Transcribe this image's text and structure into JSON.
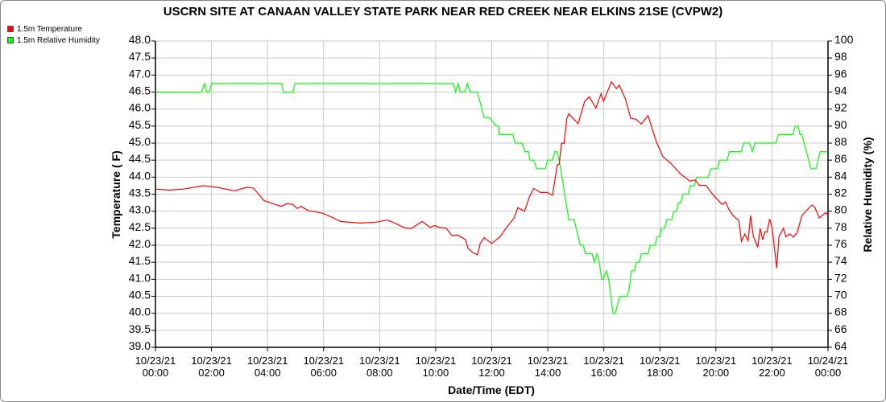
{
  "chart_data": {
    "type": "line",
    "title": "USCRN SITE AT CANAAN VALLEY STATE PARK NEAR RED CREEK NEAR ELKINS 21SE (CVPW2)",
    "xlabel": "Date/Time (EDT)",
    "ylabel_left": "Temperature ( F)",
    "ylabel_right": "Relative Humidity (%)",
    "ylim_left": [
      39.0,
      48.0
    ],
    "ylim_right": [
      64,
      100
    ],
    "xlim_hours": [
      0,
      24
    ],
    "grid": true,
    "legend_placement": "top-left",
    "x_tick_labels": [
      [
        "10/23/21",
        "00:00"
      ],
      [
        "10/23/21",
        "02:00"
      ],
      [
        "10/23/21",
        "04:00"
      ],
      [
        "10/23/21",
        "06:00"
      ],
      [
        "10/23/21",
        "08:00"
      ],
      [
        "10/23/21",
        "10:00"
      ],
      [
        "10/23/21",
        "12:00"
      ],
      [
        "10/23/21",
        "14:00"
      ],
      [
        "10/23/21",
        "16:00"
      ],
      [
        "10/23/21",
        "18:00"
      ],
      [
        "10/23/21",
        "20:00"
      ],
      [
        "10/23/21",
        "22:00"
      ],
      [
        "10/24/21",
        "00:00"
      ]
    ],
    "y_left_ticks": [
      "48.0",
      "47.5",
      "47.0",
      "46.5",
      "46.0",
      "45.5",
      "45.0",
      "44.5",
      "44.0",
      "43.5",
      "43.0",
      "42.5",
      "42.0",
      "41.5",
      "41.0",
      "40.5",
      "40.0",
      "39.5",
      "39.0"
    ],
    "y_right_ticks": [
      "100",
      "98",
      "96",
      "94",
      "92",
      "90",
      "88",
      "86",
      "84",
      "82",
      "80",
      "78",
      "76",
      "74",
      "72",
      "70",
      "68",
      "66",
      "64"
    ],
    "series": [
      {
        "name": "1.5m Temperature",
        "axis": "left",
        "color": "#ff0000",
        "points": [
          [
            0,
            43.65
          ],
          [
            0.5,
            43.62
          ],
          [
            1,
            43.65
          ],
          [
            1.72,
            43.75
          ],
          [
            2.2,
            43.7
          ],
          [
            2.82,
            43.6
          ],
          [
            3.26,
            43.7
          ],
          [
            3.5,
            43.68
          ],
          [
            3.87,
            43.31
          ],
          [
            4.16,
            43.23
          ],
          [
            4.49,
            43.14
          ],
          [
            4.68,
            43.22
          ],
          [
            4.9,
            43.2
          ],
          [
            5.06,
            43.08
          ],
          [
            5.2,
            43.14
          ],
          [
            5.44,
            43.02
          ],
          [
            5.97,
            42.94
          ],
          [
            6.35,
            42.8
          ],
          [
            6.6,
            42.7
          ],
          [
            7.31,
            42.65
          ],
          [
            7.89,
            42.68
          ],
          [
            8.27,
            42.74
          ],
          [
            8.46,
            42.68
          ],
          [
            8.9,
            42.51
          ],
          [
            9.13,
            42.49
          ],
          [
            9.52,
            42.7
          ],
          [
            9.81,
            42.52
          ],
          [
            9.95,
            42.58
          ],
          [
            10.14,
            42.52
          ],
          [
            10.38,
            42.5
          ],
          [
            10.58,
            42.28
          ],
          [
            10.77,
            42.3
          ],
          [
            11.06,
            42.17
          ],
          [
            11.16,
            41.9
          ],
          [
            11.33,
            41.78
          ],
          [
            11.49,
            41.72
          ],
          [
            11.59,
            42.05
          ],
          [
            11.73,
            42.22
          ],
          [
            12.0,
            42.05
          ],
          [
            12.3,
            42.25
          ],
          [
            12.5,
            42.49
          ],
          [
            12.8,
            42.8
          ],
          [
            12.93,
            43.1
          ],
          [
            13.17,
            43.0
          ],
          [
            13.36,
            43.45
          ],
          [
            13.5,
            43.67
          ],
          [
            13.74,
            43.55
          ],
          [
            13.98,
            43.55
          ],
          [
            14.17,
            43.47
          ],
          [
            14.34,
            44.36
          ],
          [
            14.41,
            44.38
          ],
          [
            14.49,
            45.0
          ],
          [
            14.58,
            44.99
          ],
          [
            14.68,
            45.72
          ],
          [
            14.75,
            45.86
          ],
          [
            15.08,
            45.57
          ],
          [
            15.32,
            46.23
          ],
          [
            15.48,
            46.36
          ],
          [
            15.72,
            46.03
          ],
          [
            15.9,
            46.45
          ],
          [
            15.99,
            46.23
          ],
          [
            16.27,
            46.8
          ],
          [
            16.45,
            46.6
          ],
          [
            16.55,
            46.7
          ],
          [
            16.77,
            46.3
          ],
          [
            16.96,
            45.73
          ],
          [
            17.15,
            45.7
          ],
          [
            17.34,
            45.56
          ],
          [
            17.58,
            45.81
          ],
          [
            17.87,
            45.05
          ],
          [
            18.11,
            44.6
          ],
          [
            18.4,
            44.4
          ],
          [
            18.73,
            44.1
          ],
          [
            19.07,
            43.88
          ],
          [
            19.26,
            43.92
          ],
          [
            19.4,
            43.76
          ],
          [
            19.64,
            43.76
          ],
          [
            19.93,
            43.45
          ],
          [
            20.22,
            43.2
          ],
          [
            20.34,
            43.27
          ],
          [
            20.46,
            43.06
          ],
          [
            20.6,
            42.88
          ],
          [
            20.82,
            42.72
          ],
          [
            20.91,
            42.11
          ],
          [
            21.03,
            42.33
          ],
          [
            21.15,
            42.13
          ],
          [
            21.24,
            42.87
          ],
          [
            21.33,
            42.28
          ],
          [
            21.49,
            41.94
          ],
          [
            21.58,
            42.49
          ],
          [
            21.67,
            42.16
          ],
          [
            21.75,
            42.4
          ],
          [
            21.82,
            42.38
          ],
          [
            21.92,
            42.77
          ],
          [
            22.01,
            42.49
          ],
          [
            22.17,
            41.33
          ],
          [
            22.25,
            42.25
          ],
          [
            22.41,
            42.5
          ],
          [
            22.5,
            42.25
          ],
          [
            22.64,
            42.33
          ],
          [
            22.76,
            42.24
          ],
          [
            22.9,
            42.37
          ],
          [
            23.07,
            42.87
          ],
          [
            23.24,
            43.03
          ],
          [
            23.43,
            43.18
          ],
          [
            23.53,
            43.12
          ],
          [
            23.69,
            42.8
          ],
          [
            23.91,
            42.96
          ],
          [
            24.0,
            42.88
          ]
        ]
      },
      {
        "name": "1.5m Relative Humidity",
        "axis": "right",
        "color": "#00ff00",
        "points": [
          [
            0,
            94
          ],
          [
            1.65,
            94
          ],
          [
            1.75,
            95
          ],
          [
            1.83,
            94
          ],
          [
            1.93,
            94
          ],
          [
            2.0,
            95
          ],
          [
            4.5,
            95
          ],
          [
            4.57,
            94
          ],
          [
            4.9,
            94
          ],
          [
            4.98,
            95
          ],
          [
            10.63,
            95
          ],
          [
            10.71,
            94
          ],
          [
            10.8,
            95
          ],
          [
            10.88,
            94
          ],
          [
            11.04,
            94
          ],
          [
            11.13,
            95
          ],
          [
            11.23,
            94
          ],
          [
            11.49,
            94
          ],
          [
            11.73,
            91
          ],
          [
            11.92,
            91
          ],
          [
            12.16,
            90
          ],
          [
            12.26,
            90
          ],
          [
            12.26,
            89
          ],
          [
            12.76,
            89
          ],
          [
            12.83,
            88
          ],
          [
            13.09,
            88
          ],
          [
            13.18,
            87
          ],
          [
            13.31,
            87
          ],
          [
            13.36,
            86
          ],
          [
            13.5,
            86
          ],
          [
            13.6,
            85
          ],
          [
            13.91,
            85
          ],
          [
            14.0,
            86
          ],
          [
            14.17,
            86
          ],
          [
            14.25,
            87
          ],
          [
            14.33,
            87
          ],
          [
            14.41,
            86
          ],
          [
            14.75,
            79
          ],
          [
            14.94,
            79
          ],
          [
            15.16,
            76
          ],
          [
            15.27,
            76
          ],
          [
            15.34,
            75
          ],
          [
            15.58,
            75
          ],
          [
            15.66,
            74
          ],
          [
            15.76,
            75
          ],
          [
            15.84,
            74
          ],
          [
            15.92,
            72
          ],
          [
            15.98,
            72
          ],
          [
            16.09,
            73
          ],
          [
            16.17,
            72
          ],
          [
            16.33,
            68
          ],
          [
            16.41,
            68
          ],
          [
            16.57,
            70
          ],
          [
            16.84,
            70
          ],
          [
            16.91,
            71
          ],
          [
            16.99,
            73
          ],
          [
            17.09,
            73
          ],
          [
            17.16,
            74
          ],
          [
            17.26,
            74
          ],
          [
            17.34,
            75
          ],
          [
            17.58,
            75
          ],
          [
            17.65,
            76
          ],
          [
            17.83,
            76
          ],
          [
            17.91,
            77
          ],
          [
            18.0,
            77
          ],
          [
            18.05,
            78
          ],
          [
            18.17,
            78
          ],
          [
            18.25,
            79
          ],
          [
            18.42,
            79
          ],
          [
            18.5,
            80
          ],
          [
            18.6,
            80
          ],
          [
            18.66,
            81
          ],
          [
            18.75,
            81
          ],
          [
            18.82,
            82
          ],
          [
            19.01,
            82
          ],
          [
            19.09,
            83
          ],
          [
            19.23,
            83
          ],
          [
            19.32,
            84
          ],
          [
            19.73,
            84
          ],
          [
            19.82,
            85
          ],
          [
            20.06,
            85
          ],
          [
            20.14,
            86
          ],
          [
            20.4,
            86
          ],
          [
            20.48,
            87
          ],
          [
            20.9,
            87
          ],
          [
            20.99,
            88
          ],
          [
            21.2,
            88
          ],
          [
            21.3,
            87
          ],
          [
            21.39,
            88
          ],
          [
            22.14,
            88
          ],
          [
            22.23,
            89
          ],
          [
            22.74,
            89
          ],
          [
            22.83,
            90
          ],
          [
            22.93,
            90
          ],
          [
            23.0,
            89
          ],
          [
            23.07,
            89
          ],
          [
            23.39,
            85
          ],
          [
            23.57,
            85
          ],
          [
            23.72,
            87
          ],
          [
            23.99,
            87
          ]
        ]
      }
    ]
  }
}
